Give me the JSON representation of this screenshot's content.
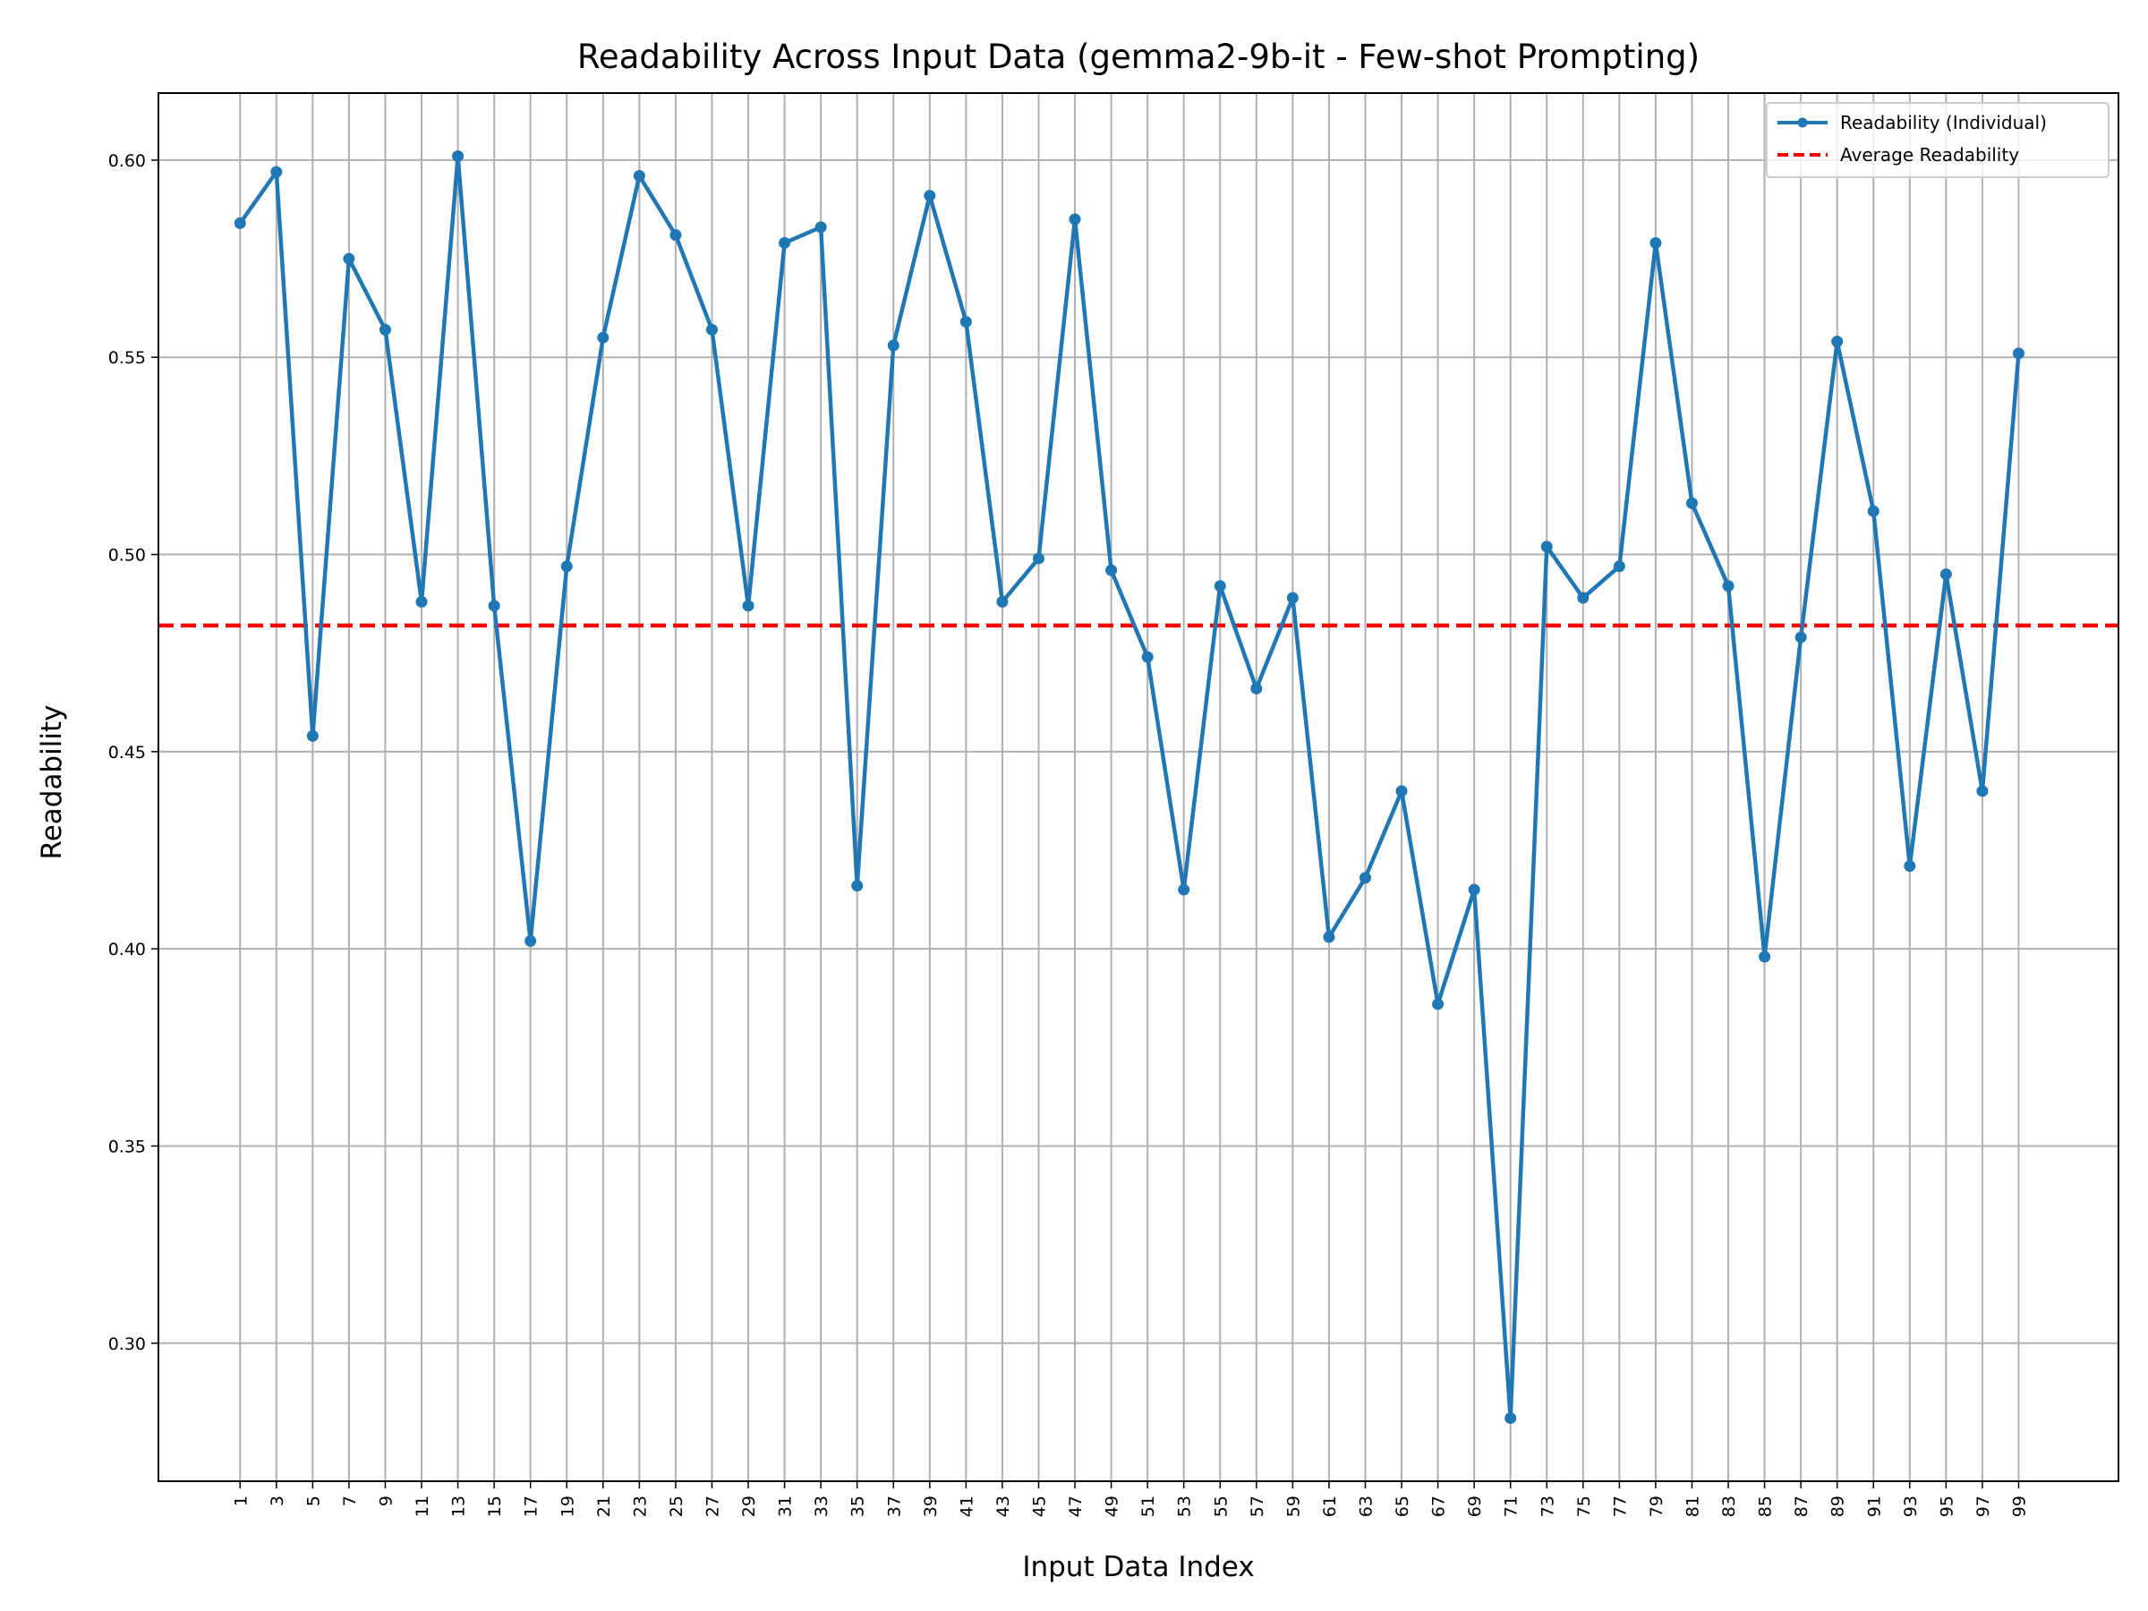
{
  "chart_data": {
    "type": "line",
    "title": "Readability Across Input Data (gemma2-9b-it - Few-shot Prompting)",
    "xlabel": "Input Data Index",
    "ylabel": "Readability",
    "ylim": [
      0.265,
      0.617
    ],
    "xlim": [
      -3.5,
      104.5
    ],
    "yticks": [
      0.3,
      0.35,
      0.4,
      0.45,
      0.5,
      0.55,
      0.6
    ],
    "ytick_labels": [
      "0.30",
      "0.35",
      "0.40",
      "0.45",
      "0.50",
      "0.55",
      "0.60"
    ],
    "x": [
      1,
      3,
      5,
      7,
      9,
      11,
      13,
      15,
      17,
      19,
      21,
      23,
      25,
      27,
      29,
      31,
      33,
      35,
      37,
      39,
      41,
      43,
      45,
      47,
      49,
      51,
      53,
      55,
      57,
      59,
      61,
      63,
      65,
      67,
      69,
      71,
      73,
      75,
      77,
      79,
      81,
      83,
      85,
      87,
      89,
      91,
      93,
      95,
      97,
      99
    ],
    "xtick_labels": [
      "1",
      "3",
      "5",
      "7",
      "9",
      "11",
      "13",
      "15",
      "17",
      "19",
      "21",
      "23",
      "25",
      "27",
      "29",
      "31",
      "33",
      "35",
      "37",
      "39",
      "41",
      "43",
      "45",
      "47",
      "49",
      "51",
      "53",
      "55",
      "57",
      "59",
      "61",
      "63",
      "65",
      "67",
      "69",
      "71",
      "73",
      "75",
      "77",
      "79",
      "81",
      "83",
      "85",
      "87",
      "89",
      "91",
      "93",
      "95",
      "97",
      "99"
    ],
    "series": [
      {
        "name": "Readability (Individual)",
        "color": "#1f77b4",
        "values": [
          0.584,
          0.597,
          0.454,
          0.575,
          0.557,
          0.488,
          0.601,
          0.487,
          0.402,
          0.497,
          0.555,
          0.596,
          0.581,
          0.557,
          0.487,
          0.579,
          0.583,
          0.416,
          0.553,
          0.591,
          0.559,
          0.488,
          0.499,
          0.585,
          0.496,
          0.474,
          0.415,
          0.492,
          0.466,
          0.489,
          0.403,
          0.418,
          0.44,
          0.386,
          0.415,
          0.281,
          0.502,
          0.489,
          0.497,
          0.579,
          0.513,
          0.492,
          0.398,
          0.479,
          0.554,
          0.511,
          0.421,
          0.495,
          0.44,
          0.551
        ]
      }
    ],
    "average": {
      "name": "Average Readability",
      "value": 0.482,
      "color": "#ff0000",
      "style": "dashed"
    },
    "grid": true,
    "legend_position": "top-right"
  }
}
